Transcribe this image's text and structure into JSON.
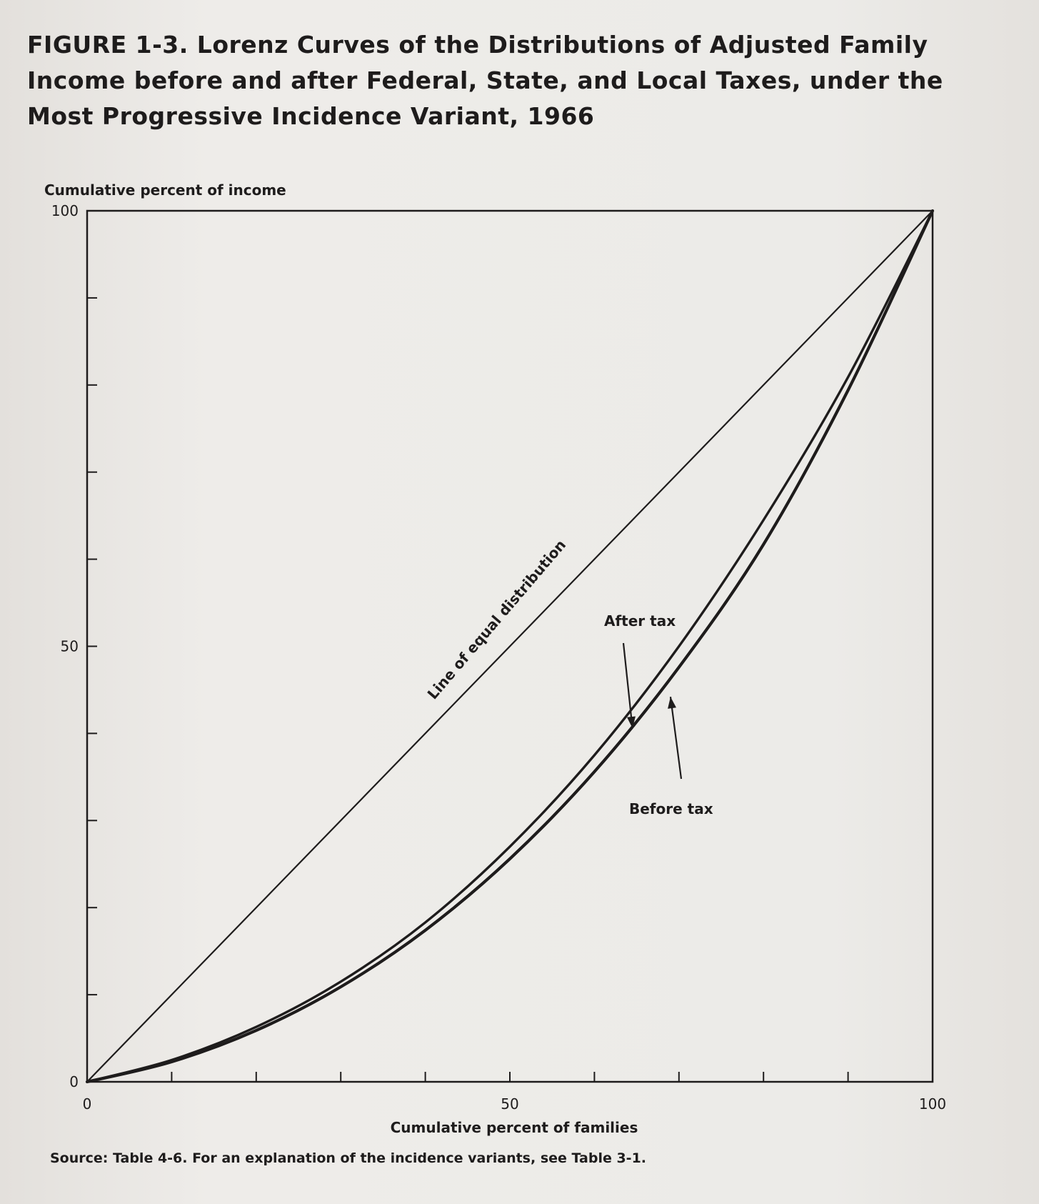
{
  "figure": {
    "title": "FIGURE 1-3. Lorenz Curves of the Distributions of Adjusted Family Income before and after Federal, State, and Local Taxes, under the Most Progressive Incidence Variant, 1966",
    "source": "Source: Table 4-6. For an explanation of the incidence variants, see Table 3-1."
  },
  "chart_data": {
    "type": "line",
    "title": "FIGURE 1-3. Lorenz Curves of the Distributions of Adjusted Family Income before and after Federal, State, and Local Taxes, under the Most Progressive Incidence Variant, 1966",
    "xlabel": "Cumulative percent of families",
    "ylabel": "Cumulative percent of income",
    "xlim": [
      0,
      100
    ],
    "ylim": [
      0,
      100
    ],
    "x_tick_labels": [
      "0",
      "50",
      "100"
    ],
    "y_tick_labels": [
      "0",
      "50",
      "100"
    ],
    "x_minor_ticks": [
      10,
      20,
      30,
      40,
      50,
      60,
      70,
      80,
      90
    ],
    "y_minor_ticks": [
      10,
      20,
      30,
      40,
      50,
      60,
      70,
      80,
      90
    ],
    "grid": false,
    "series": [
      {
        "name": "Line of equal distribution",
        "x": [
          0,
          100
        ],
        "y": [
          0,
          100
        ]
      },
      {
        "name": "After tax",
        "x": [
          0,
          10,
          20,
          30,
          40,
          50,
          60,
          70,
          80,
          90,
          100
        ],
        "y": [
          0,
          2.5,
          6.3,
          11.5,
          18.3,
          27.0,
          37.5,
          50.0,
          64.5,
          80.9,
          100
        ]
      },
      {
        "name": "Before tax",
        "x": [
          0,
          10,
          20,
          30,
          40,
          50,
          60,
          70,
          80,
          90,
          100
        ],
        "y": [
          0,
          2.3,
          5.9,
          10.9,
          17.4,
          25.6,
          35.6,
          47.6,
          61.7,
          79.4,
          100
        ]
      }
    ],
    "annotations": [
      {
        "text": "Line of equal distribution",
        "series": "Line of equal distribution"
      },
      {
        "text": "After tax",
        "series": "After tax",
        "arrow_to": [
          64.5,
          40.6
        ]
      },
      {
        "text": "Before tax",
        "series": "Before tax",
        "arrow_to": [
          69.0,
          44.2
        ]
      }
    ]
  }
}
